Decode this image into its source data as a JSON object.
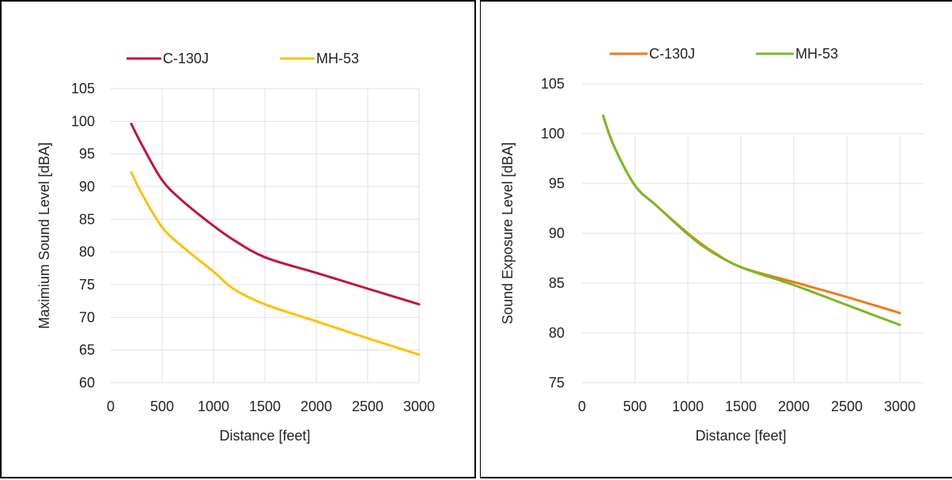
{
  "chart_data": [
    {
      "type": "line",
      "xlabel": "Distance [feet]",
      "ylabel": "Maximium Sound Level [dBA]",
      "xlim": [
        0,
        3000
      ],
      "ylim": [
        60,
        105
      ],
      "xticks": [
        0,
        500,
        1000,
        1500,
        2000,
        2500,
        3000
      ],
      "yticks": [
        60,
        65,
        70,
        75,
        80,
        85,
        90,
        95,
        100,
        105
      ],
      "grid": true,
      "legend_position": "top",
      "series": [
        {
          "name": "C-130J",
          "color": "#c0143c",
          "x": [
            200,
            300,
            500,
            700,
            1000,
            1200,
            1500,
            2000,
            2500,
            3000
          ],
          "y": [
            99.6,
            96.5,
            91.0,
            87.8,
            84.0,
            81.8,
            79.2,
            76.8,
            74.4,
            72.0
          ]
        },
        {
          "name": "MH-53",
          "color": "#ffc000",
          "x": [
            200,
            300,
            500,
            700,
            1000,
            1200,
            1500,
            2000,
            2500,
            3000
          ],
          "y": [
            92.2,
            89.0,
            83.8,
            80.8,
            77.0,
            74.3,
            72.0,
            69.4,
            66.8,
            64.3
          ]
        }
      ]
    },
    {
      "type": "line",
      "xlabel": "Distance [feet]",
      "ylabel": "Sound Exposure  Level [dBA]",
      "xlim": [
        0,
        3000
      ],
      "ylim": [
        75,
        105
      ],
      "xticks": [
        0,
        500,
        1000,
        1500,
        2000,
        2500,
        3000
      ],
      "yticks": [
        75,
        80,
        85,
        90,
        95,
        100,
        105
      ],
      "grid": true,
      "legend_position": "top",
      "series": [
        {
          "name": "C-130J",
          "color": "#f07818",
          "x": [
            200,
            300,
            500,
            700,
            1000,
            1200,
            1500,
            2000,
            2500,
            3000
          ],
          "y": [
            101.8,
            98.8,
            94.8,
            92.8,
            90.0,
            88.4,
            86.6,
            85.1,
            83.6,
            82.0
          ]
        },
        {
          "name": "MH-53",
          "color": "#7cb820",
          "x": [
            200,
            300,
            500,
            700,
            1000,
            1200,
            1500,
            2000,
            2500,
            3000
          ],
          "y": [
            101.8,
            98.8,
            94.8,
            92.8,
            89.9,
            88.3,
            86.6,
            84.8,
            82.8,
            80.8
          ]
        }
      ]
    }
  ]
}
